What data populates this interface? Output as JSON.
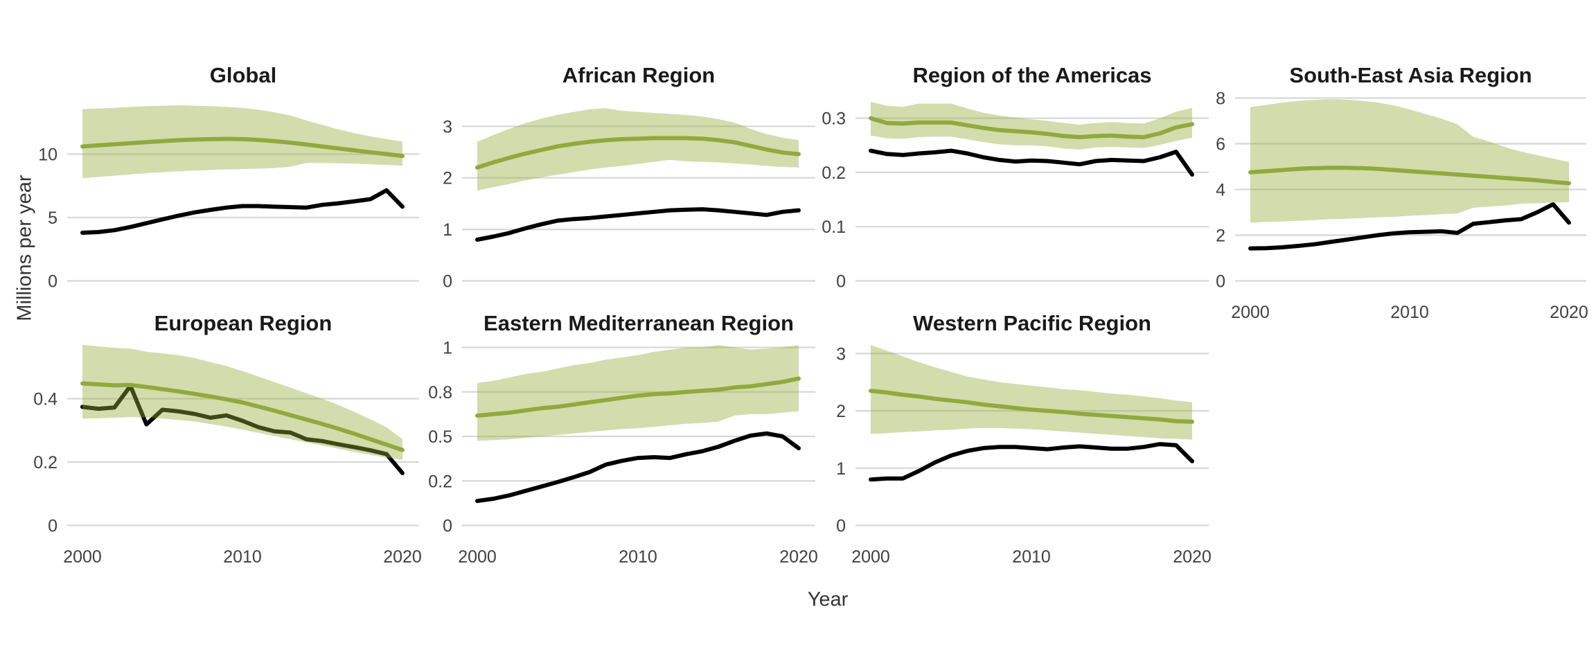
{
  "figure": {
    "xlabel": "Year",
    "ylabel": "Millions per year",
    "years": [
      2000,
      2001,
      2002,
      2003,
      2004,
      2005,
      2006,
      2007,
      2008,
      2009,
      2010,
      2011,
      2012,
      2013,
      2014,
      2015,
      2016,
      2017,
      2018,
      2019,
      2020
    ],
    "x_tick_labels": [
      "2000",
      "2010",
      "2020"
    ],
    "x_tick_years": [
      2000,
      2010,
      2020
    ],
    "colors": {
      "trend_line": "#91a93d",
      "observed_line": "#000000",
      "band_fill": "#96ac3c",
      "band_opacity": 0.42,
      "gridline": "#d8d8d8",
      "tick_text": "#404040",
      "title_text": "#1a1a1a",
      "axis_title_text": "#333333",
      "background": "#ffffff"
    }
  },
  "chart_data": [
    {
      "type": "line",
      "title": "Global",
      "ytick_values": [
        0,
        5,
        10
      ],
      "ytick_labels": [
        "0",
        "5",
        "10"
      ],
      "series": [
        {
          "name": "trend-line-green",
          "values": [
            10.6,
            10.7,
            10.78,
            10.86,
            10.95,
            11.03,
            11.1,
            11.15,
            11.18,
            11.2,
            11.18,
            11.12,
            11.02,
            10.9,
            10.76,
            10.6,
            10.45,
            10.3,
            10.15,
            10.0,
            9.85
          ]
        },
        {
          "name": "observed-line-black",
          "values": [
            3.8,
            3.85,
            4.0,
            4.25,
            4.55,
            4.85,
            5.15,
            5.4,
            5.6,
            5.78,
            5.9,
            5.9,
            5.85,
            5.82,
            5.78,
            6.0,
            6.12,
            6.28,
            6.45,
            7.15,
            5.85
          ]
        }
      ],
      "band": {
        "upper": [
          13.55,
          13.6,
          13.65,
          13.72,
          13.78,
          13.82,
          13.85,
          13.82,
          13.78,
          13.72,
          13.65,
          13.5,
          13.3,
          13.05,
          12.65,
          12.3,
          11.95,
          11.65,
          11.4,
          11.18,
          11.0
        ],
        "lower": [
          8.1,
          8.2,
          8.3,
          8.4,
          8.5,
          8.58,
          8.65,
          8.7,
          8.75,
          8.8,
          8.82,
          8.85,
          8.9,
          9.0,
          9.3,
          9.3,
          9.28,
          9.25,
          9.2,
          9.15,
          9.1
        ]
      }
    },
    {
      "type": "line",
      "title": "African Region",
      "ytick_values": [
        0,
        1,
        2,
        3
      ],
      "ytick_labels": [
        "0",
        "1",
        "2",
        "3"
      ],
      "series": [
        {
          "name": "trend-line-green",
          "values": [
            2.2,
            2.3,
            2.39,
            2.47,
            2.54,
            2.61,
            2.66,
            2.7,
            2.73,
            2.75,
            2.76,
            2.77,
            2.77,
            2.77,
            2.76,
            2.73,
            2.69,
            2.62,
            2.55,
            2.49,
            2.46
          ]
        },
        {
          "name": "observed-line-black",
          "values": [
            0.8,
            0.86,
            0.93,
            1.02,
            1.1,
            1.17,
            1.2,
            1.22,
            1.25,
            1.28,
            1.31,
            1.34,
            1.37,
            1.38,
            1.39,
            1.37,
            1.34,
            1.31,
            1.28,
            1.34,
            1.37
          ]
        }
      ],
      "band": {
        "upper": [
          2.7,
          2.83,
          2.95,
          3.06,
          3.15,
          3.22,
          3.28,
          3.33,
          3.35,
          3.3,
          3.28,
          3.26,
          3.24,
          3.22,
          3.19,
          3.14,
          3.07,
          2.95,
          2.85,
          2.78,
          2.73
        ],
        "lower": [
          1.75,
          1.82,
          1.88,
          1.95,
          2.01,
          2.06,
          2.11,
          2.16,
          2.2,
          2.23,
          2.27,
          2.31,
          2.35,
          2.32,
          2.31,
          2.3,
          2.28,
          2.26,
          2.23,
          2.21,
          2.2
        ]
      }
    },
    {
      "type": "line",
      "title": "Region of the Americas",
      "ytick_values": [
        0,
        0.1,
        0.2,
        0.3
      ],
      "ytick_labels": [
        "0",
        "0.1",
        "0.2",
        "0.3"
      ],
      "series": [
        {
          "name": "trend-line-green",
          "values": [
            0.3,
            0.291,
            0.29,
            0.292,
            0.292,
            0.292,
            0.287,
            0.282,
            0.278,
            0.276,
            0.274,
            0.271,
            0.267,
            0.265,
            0.267,
            0.268,
            0.266,
            0.265,
            0.272,
            0.283,
            0.289
          ]
        },
        {
          "name": "observed-line-black",
          "values": [
            0.24,
            0.234,
            0.232,
            0.235,
            0.237,
            0.24,
            0.235,
            0.228,
            0.223,
            0.22,
            0.222,
            0.221,
            0.218,
            0.215,
            0.221,
            0.223,
            0.222,
            0.221,
            0.228,
            0.238,
            0.196
          ]
        }
      ],
      "band": {
        "upper": [
          0.33,
          0.323,
          0.321,
          0.327,
          0.327,
          0.327,
          0.318,
          0.31,
          0.305,
          0.301,
          0.298,
          0.295,
          0.291,
          0.288,
          0.291,
          0.293,
          0.291,
          0.29,
          0.3,
          0.312,
          0.319
        ],
        "lower": [
          0.268,
          0.263,
          0.262,
          0.265,
          0.266,
          0.266,
          0.261,
          0.256,
          0.252,
          0.25,
          0.25,
          0.248,
          0.244,
          0.242,
          0.246,
          0.247,
          0.246,
          0.245,
          0.251,
          0.258,
          0.264
        ]
      }
    },
    {
      "type": "line",
      "title": "South-East Asia Region",
      "ytick_values": [
        0,
        2,
        4,
        6,
        8
      ],
      "ytick_labels": [
        "0",
        "2",
        "4",
        "6",
        "8"
      ],
      "series": [
        {
          "name": "trend-line-green",
          "values": [
            4.75,
            4.8,
            4.85,
            4.9,
            4.93,
            4.95,
            4.95,
            4.93,
            4.9,
            4.85,
            4.8,
            4.75,
            4.7,
            4.65,
            4.6,
            4.55,
            4.5,
            4.45,
            4.4,
            4.33,
            4.27
          ]
        },
        {
          "name": "observed-line-black",
          "values": [
            1.42,
            1.43,
            1.47,
            1.53,
            1.6,
            1.7,
            1.8,
            1.9,
            2.0,
            2.08,
            2.13,
            2.15,
            2.17,
            2.1,
            2.5,
            2.57,
            2.65,
            2.7,
            3.0,
            3.35,
            2.55
          ]
        }
      ],
      "band": {
        "upper": [
          7.6,
          7.7,
          7.8,
          7.88,
          7.92,
          7.95,
          7.93,
          7.88,
          7.8,
          7.68,
          7.5,
          7.3,
          7.1,
          6.85,
          6.3,
          6.1,
          5.85,
          5.65,
          5.5,
          5.35,
          5.2
        ],
        "lower": [
          2.55,
          2.58,
          2.6,
          2.63,
          2.66,
          2.7,
          2.72,
          2.75,
          2.78,
          2.8,
          2.85,
          2.88,
          2.92,
          2.95,
          3.2,
          3.25,
          3.3,
          3.38,
          3.4,
          3.42,
          3.45
        ]
      }
    },
    {
      "type": "line",
      "title": "European Region",
      "ytick_values": [
        0,
        0.2,
        0.4
      ],
      "ytick_labels": [
        "0",
        "0.2",
        "0.4"
      ],
      "series": [
        {
          "name": "trend-line-green",
          "values": [
            0.448,
            0.445,
            0.442,
            0.443,
            0.437,
            0.43,
            0.423,
            0.415,
            0.407,
            0.398,
            0.388,
            0.375,
            0.362,
            0.348,
            0.334,
            0.32,
            0.305,
            0.289,
            0.272,
            0.255,
            0.238
          ]
        },
        {
          "name": "observed-line-black",
          "values": [
            0.374,
            0.368,
            0.372,
            0.44,
            0.319,
            0.365,
            0.36,
            0.352,
            0.34,
            0.347,
            0.33,
            0.31,
            0.297,
            0.293,
            0.272,
            0.266,
            0.256,
            0.247,
            0.237,
            0.225,
            0.165
          ]
        }
      ],
      "band": {
        "upper": [
          0.57,
          0.565,
          0.56,
          0.558,
          0.548,
          0.543,
          0.537,
          0.528,
          0.515,
          0.503,
          0.487,
          0.47,
          0.452,
          0.435,
          0.417,
          0.4,
          0.38,
          0.358,
          0.335,
          0.31,
          0.272
        ],
        "lower": [
          0.337,
          0.338,
          0.34,
          0.342,
          0.34,
          0.337,
          0.333,
          0.328,
          0.32,
          0.312,
          0.302,
          0.292,
          0.282,
          0.272,
          0.262,
          0.252,
          0.242,
          0.232,
          0.222,
          0.214,
          0.207
        ]
      }
    },
    {
      "type": "line",
      "title": "Eastern Mediterranean Region",
      "ytick_values": [
        0,
        0.2,
        0.5,
        0.8,
        1
      ],
      "ytick_labels": [
        "0",
        "0.2",
        "0.5",
        "0.8",
        "1"
      ],
      "series": [
        {
          "name": "trend-line-green",
          "values": [
            0.64,
            0.65,
            0.66,
            0.675,
            0.69,
            0.7,
            0.715,
            0.73,
            0.745,
            0.76,
            0.775,
            0.785,
            0.79,
            0.8,
            0.805,
            0.81,
            0.82,
            0.825,
            0.835,
            0.845,
            0.86
          ]
        },
        {
          "name": "observed-line-black",
          "values": [
            0.11,
            0.12,
            0.135,
            0.155,
            0.175,
            0.195,
            0.225,
            0.26,
            0.31,
            0.335,
            0.355,
            0.36,
            0.355,
            0.38,
            0.4,
            0.43,
            0.47,
            0.505,
            0.52,
            0.5,
            0.42
          ]
        }
      ],
      "band": {
        "upper": [
          0.84,
          0.85,
          0.865,
          0.88,
          0.89,
          0.905,
          0.92,
          0.93,
          0.945,
          0.955,
          0.965,
          0.98,
          0.99,
          1.0,
          1.0,
          1.01,
          1.0,
          0.99,
          0.995,
          1.0,
          1.01
        ],
        "lower": [
          0.47,
          0.475,
          0.48,
          0.49,
          0.5,
          0.51,
          0.52,
          0.53,
          0.54,
          0.55,
          0.555,
          0.565,
          0.575,
          0.585,
          0.59,
          0.6,
          0.64,
          0.65,
          0.65,
          0.66,
          0.67
        ]
      }
    },
    {
      "type": "line",
      "title": "Western Pacific Region",
      "ytick_values": [
        0,
        1,
        2,
        3
      ],
      "ytick_labels": [
        "0",
        "1",
        "2",
        "3"
      ],
      "series": [
        {
          "name": "trend-line-green",
          "values": [
            2.35,
            2.32,
            2.28,
            2.25,
            2.21,
            2.18,
            2.15,
            2.11,
            2.08,
            2.05,
            2.02,
            2.0,
            1.98,
            1.95,
            1.93,
            1.91,
            1.89,
            1.87,
            1.85,
            1.82,
            1.81
          ]
        },
        {
          "name": "observed-line-black",
          "values": [
            0.8,
            0.82,
            0.82,
            0.95,
            1.1,
            1.22,
            1.3,
            1.35,
            1.37,
            1.37,
            1.35,
            1.33,
            1.36,
            1.38,
            1.36,
            1.34,
            1.34,
            1.37,
            1.42,
            1.4,
            1.12
          ]
        }
      ],
      "band": {
        "upper": [
          3.15,
          3.05,
          2.95,
          2.85,
          2.76,
          2.68,
          2.6,
          2.55,
          2.5,
          2.47,
          2.44,
          2.41,
          2.38,
          2.36,
          2.33,
          2.3,
          2.28,
          2.25,
          2.22,
          2.18,
          2.15
        ],
        "lower": [
          1.6,
          1.61,
          1.63,
          1.64,
          1.66,
          1.67,
          1.69,
          1.7,
          1.7,
          1.69,
          1.68,
          1.66,
          1.64,
          1.62,
          1.6,
          1.58,
          1.56,
          1.54,
          1.52,
          1.51,
          1.5
        ]
      }
    }
  ]
}
